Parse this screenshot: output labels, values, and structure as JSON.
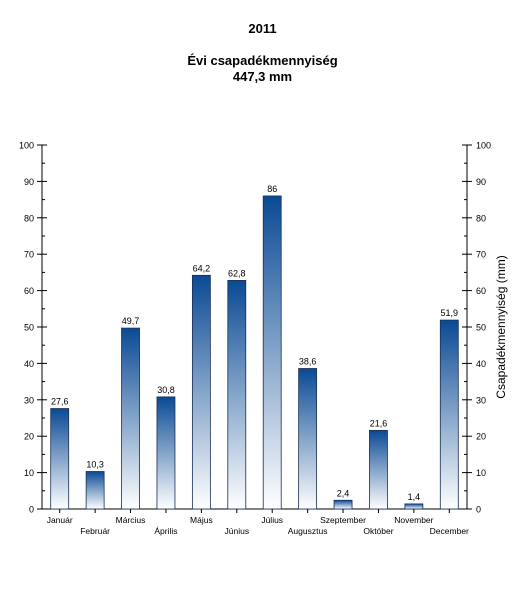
{
  "chart_data": {
    "type": "bar",
    "title": "2011",
    "subtitle": "Évi csapadékmennyiség",
    "total_label": "447,3 mm",
    "ylabel": "Csapadékmennyiség (mm)",
    "xlabel": "",
    "ylim": [
      0,
      100
    ],
    "yticks": [
      0,
      10,
      20,
      30,
      40,
      50,
      60,
      70,
      80,
      90,
      100
    ],
    "categories": [
      "Január",
      "Február",
      "Március",
      "Április",
      "Május",
      "Június",
      "Július",
      "Augusztus",
      "Szeptember",
      "Október",
      "November",
      "December"
    ],
    "values": [
      27.6,
      10.3,
      49.7,
      30.8,
      64.2,
      62.8,
      86,
      38.6,
      2.4,
      21.6,
      1.4,
      51.9
    ],
    "value_labels": [
      "27,6",
      "10,3",
      "49,7",
      "30,8",
      "64,2",
      "62,8",
      "86",
      "38,6",
      "2,4",
      "21,6",
      "1,4",
      "51,9"
    ],
    "gridlines": false,
    "legend": "none",
    "colors": {
      "bar_top": "#0a4a94",
      "bar_bottom": "#ffffff",
      "bar_edge": "#1a2f55"
    }
  }
}
